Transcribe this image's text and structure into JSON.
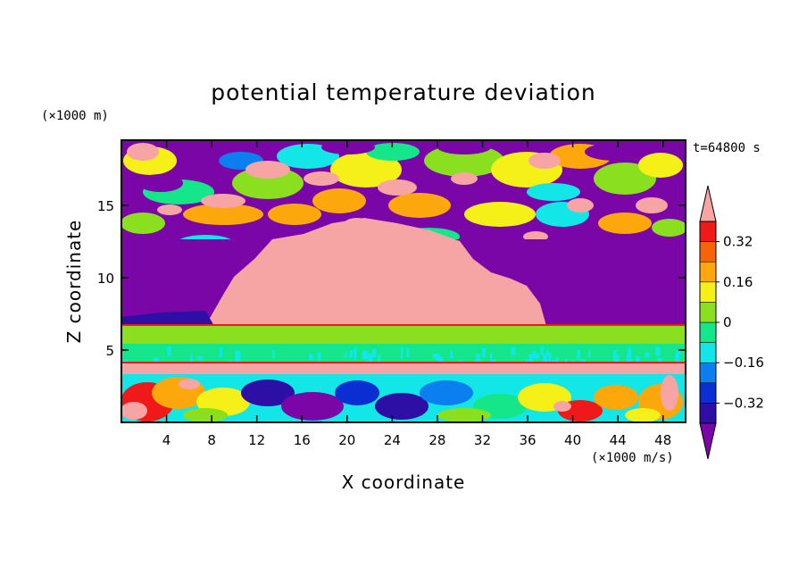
{
  "chart_data": {
    "type": "heatmap",
    "title": "potential temperature deviation",
    "xlabel": "X coordinate",
    "ylabel": "Z coordinate",
    "x_unit": "(×1000 m/s)",
    "y_unit": "(×1000 m)",
    "time_label": "t=64800 s",
    "xlim": [
      0,
      50
    ],
    "ylim": [
      0,
      19.5
    ],
    "x_ticks": [
      4,
      8,
      12,
      16,
      20,
      24,
      28,
      32,
      36,
      40,
      44,
      48
    ],
    "y_ticks": [
      5,
      10,
      15
    ],
    "x_tick_labels": [
      "4",
      "8",
      "12",
      "16",
      "20",
      "24",
      "28",
      "32",
      "36",
      "40",
      "44",
      "48"
    ],
    "y_tick_labels": [
      "5",
      "10",
      "15"
    ],
    "colorbar": {
      "tick_labels": [
        "0.32",
        "0.16",
        "0",
        "−0.16",
        "−0.32"
      ],
      "tick_values": [
        0.32,
        0.16,
        0,
        -0.16,
        -0.32
      ],
      "levels": [
        -0.4,
        -0.32,
        -0.24,
        -0.16,
        -0.08,
        0,
        0.08,
        0.16,
        0.24,
        0.32,
        0.4
      ],
      "colors": [
        "#7b06a8",
        "#2d0fa6",
        "#0a2ed2",
        "#0b7ff0",
        "#12e6e6",
        "#16e68a",
        "#8ae01e",
        "#f5f018",
        "#fca80c",
        "#f5640a",
        "#f01818",
        "#f7a4a4"
      ],
      "extend": "both"
    }
  }
}
